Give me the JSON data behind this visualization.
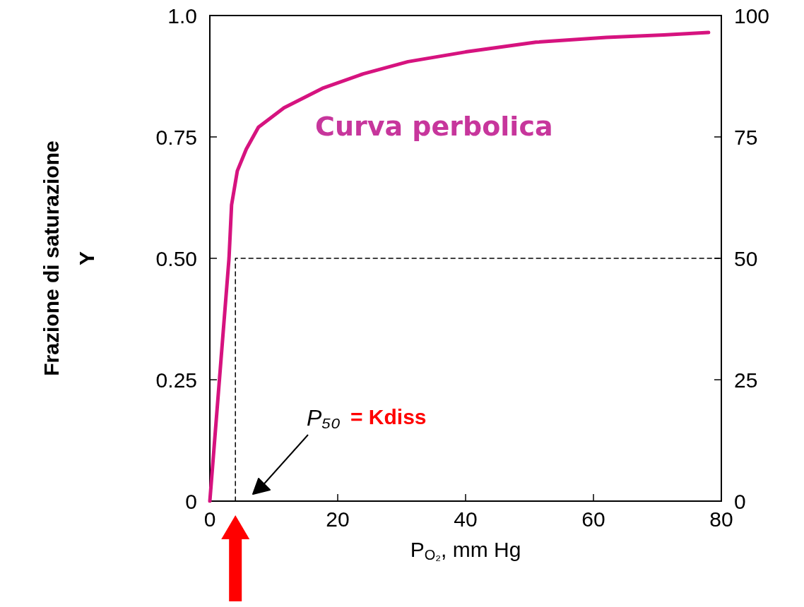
{
  "chart_data": {
    "type": "line",
    "xlabel": "P$_{O₂}$, mm Hg",
    "ylabel": "Frazione di saturazione\nY",
    "xlim": [
      0,
      80
    ],
    "xticks": [
      0,
      20,
      40,
      60,
      80
    ],
    "ylim": [
      0,
      1
    ],
    "yticks": [
      0,
      0.25,
      {
        "value": 0.5,
        "label": "0.50"
      },
      0.75,
      {
        "value": 1,
        "label": "1.0"
      }
    ],
    "y2lim": [
      0,
      100
    ],
    "y2ticks": [
      0,
      25,
      50,
      75,
      100
    ],
    "marker": "none",
    "series": [
      {
        "color": "#d6137f",
        "line_style": "solid",
        "x": [
          0,
          1.5,
          3.0,
          3.4,
          4.3,
          5.7,
          7.6,
          11.6,
          17.6,
          24,
          31,
          40,
          51,
          62,
          71,
          78
        ],
        "values": [
          0,
          0.25,
          0.5,
          0.61,
          0.68,
          0.725,
          0.77,
          0.81,
          0.85,
          0.88,
          0.905,
          0.925,
          0.945,
          0.955,
          0.96,
          0.965
        ]
      },
      {
        "color": "#000000",
        "line_style": "dashed",
        "x": [
          4,
          4,
          80
        ],
        "values": [
          0,
          0.5,
          0.5
        ]
      }
    ],
    "annotations": [
      "Curva perbolica",
      "P₅₀ = Kdiss"
    ]
  }
}
